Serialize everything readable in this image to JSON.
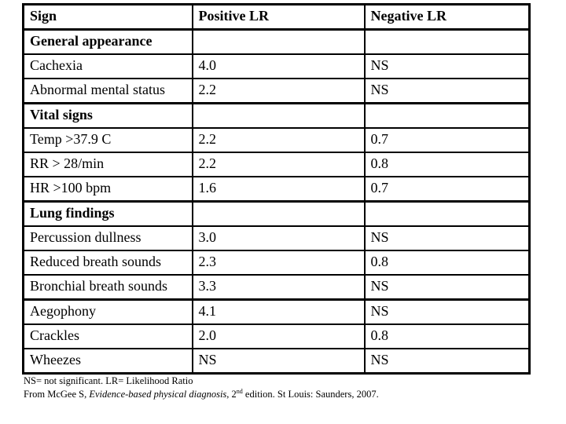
{
  "table": {
    "headers": [
      "Sign",
      "Positive LR",
      "Negative LR"
    ],
    "rows": [
      {
        "type": "section",
        "sign": "General appearance",
        "positive": "",
        "negative": ""
      },
      {
        "type": "data",
        "sign": "Cachexia",
        "positive": "4.0",
        "negative": "NS"
      },
      {
        "type": "data",
        "sign": "Abnormal mental status",
        "positive": "2.2",
        "negative": "NS",
        "divider_after": true
      },
      {
        "type": "section",
        "sign": "Vital signs",
        "positive": "",
        "negative": ""
      },
      {
        "type": "data",
        "sign": "Temp >37.9 C",
        "positive": "2.2",
        "negative": "0.7"
      },
      {
        "type": "data",
        "sign": "RR > 28/min",
        "positive": "2.2",
        "negative": "0.8"
      },
      {
        "type": "data",
        "sign": "HR >100 bpm",
        "positive": "1.6",
        "negative": "0.7",
        "divider_after": true
      },
      {
        "type": "section",
        "sign": "Lung findings",
        "positive": "",
        "negative": ""
      },
      {
        "type": "data",
        "sign": "Percussion dullness",
        "positive": "3.0",
        "negative": "NS"
      },
      {
        "type": "data",
        "sign": "Reduced breath sounds",
        "positive": "2.3",
        "negative": "0.8"
      },
      {
        "type": "data",
        "sign": "Bronchial breath sounds",
        "positive": "3.3",
        "negative": "NS",
        "divider_after": true
      },
      {
        "type": "data",
        "sign": "Aegophony",
        "positive": "4.1",
        "negative": "NS"
      },
      {
        "type": "data",
        "sign": "Crackles",
        "positive": "2.0",
        "negative": "0.8"
      },
      {
        "type": "data",
        "sign": "Wheezes",
        "positive": "NS",
        "negative": "NS"
      }
    ]
  },
  "footnotes": {
    "abbreviations": "NS= not significant. LR= Likelihood Ratio",
    "citation": {
      "prefix": "From McGee S, ",
      "book_title": "Evidence-based physical diagnosis",
      "mid": ", 2",
      "ordinal_suffix": "nd",
      "suffix": " edition. St Louis: Saunders, 2007."
    }
  },
  "colors": {
    "text": "#000000",
    "background": "#ffffff",
    "border": "#000000"
  }
}
